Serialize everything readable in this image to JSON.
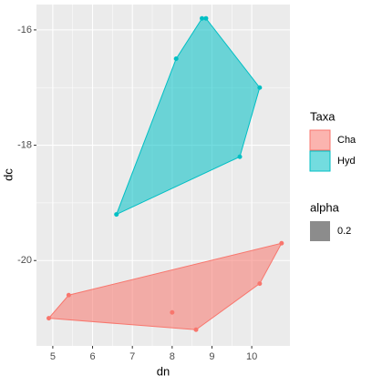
{
  "chart_data": {
    "type": "scatter",
    "x_label": "dn",
    "y_label": "dc",
    "xlim": [
      4.59,
      10.96
    ],
    "xticks": [
      5,
      6,
      7,
      8,
      9,
      10
    ],
    "ylim": [
      -21.48,
      -15.56
    ],
    "yticks": [
      -16,
      -18,
      -20
    ],
    "grid": true,
    "hull": true,
    "legend_title": "Taxa",
    "series": [
      {
        "name": "Cha",
        "color": "#f8766d",
        "x": [
          4.9,
          5.4,
          8.0,
          8.6,
          10.2,
          10.75
        ],
        "y": [
          -21.0,
          -20.6,
          -20.9,
          -21.2,
          -20.4,
          -19.7
        ]
      },
      {
        "name": "Hyd",
        "color": "#00bfc4",
        "x": [
          6.6,
          8.1,
          8.75,
          8.85,
          10.2,
          9.7
        ],
        "y": [
          -19.2,
          -16.5,
          -15.8,
          -15.8,
          -17.0,
          -18.2
        ]
      }
    ],
    "alpha_legend": {
      "title": "alpha",
      "labels": [
        "0.2"
      ]
    }
  }
}
